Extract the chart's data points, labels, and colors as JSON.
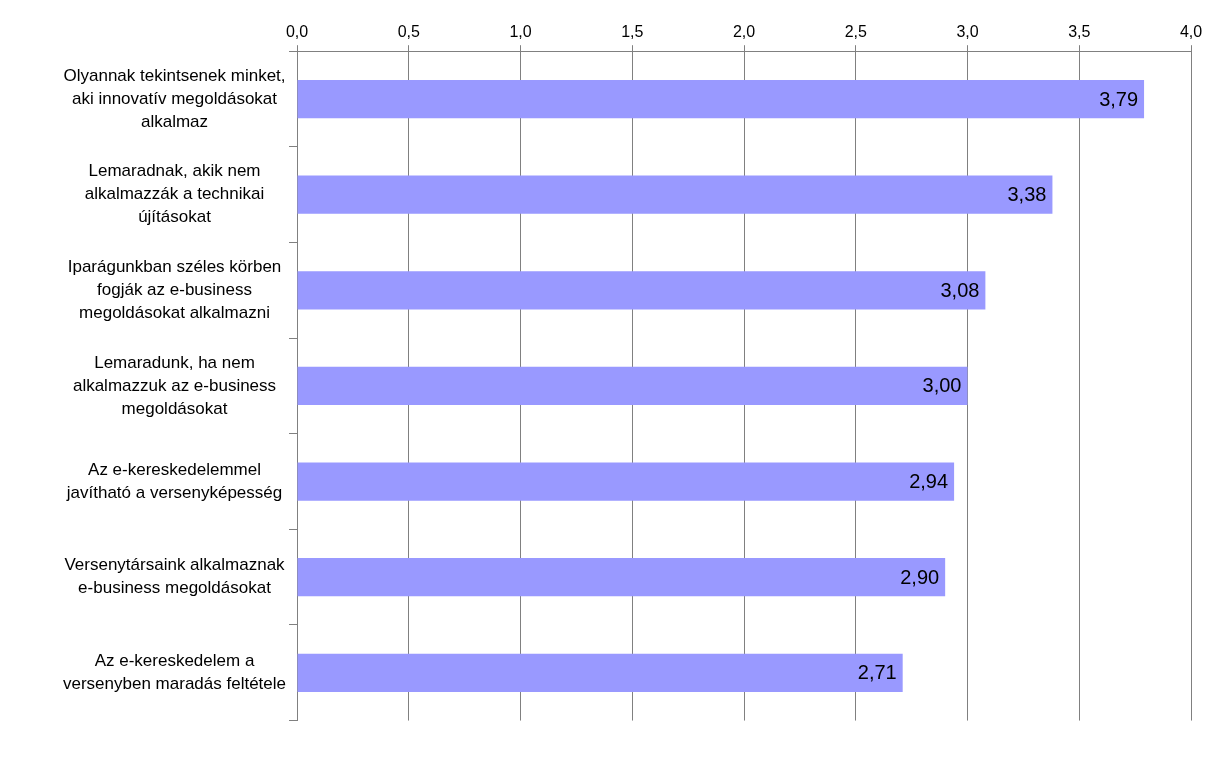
{
  "chart_data": {
    "type": "bar",
    "orientation": "horizontal",
    "categories": [
      "Olyannak tekintsenek minket, aki innovatív megoldásokat alkalmaz",
      "Lemaradnak, akik nem alkalmazzák a technikai újításokat",
      "Iparágunkban széles körben fogják az e-business megoldásokat alkalmazni",
      "Lemaradunk, ha nem alkalmazzuk az e-business megoldásokat",
      "Az e-kereskedelemmel javítható a versenyképesség",
      "Versenytársaink alkalmaznak e-business megoldásokat",
      "Az e-kereskedelem a versenyben maradás feltétele"
    ],
    "values": [
      3.79,
      3.38,
      3.08,
      3.0,
      2.94,
      2.9,
      2.71
    ],
    "value_labels": [
      "3,79",
      "3,38",
      "3,08",
      "3,00",
      "2,94",
      "2,90",
      "2,71"
    ],
    "color": "#9999ff",
    "xlim": [
      0,
      4
    ],
    "xticks": [
      {
        "value": 0,
        "label": "0,0"
      },
      {
        "value": 0.5,
        "label": "0,5"
      },
      {
        "value": 1,
        "label": "1,0"
      },
      {
        "value": 1.5,
        "label": "1,5"
      },
      {
        "value": 2,
        "label": "2,0"
      },
      {
        "value": 2.5,
        "label": "2,5"
      },
      {
        "value": 3,
        "label": "3,0"
      },
      {
        "value": 3.5,
        "label": "3,5"
      },
      {
        "value": 4,
        "label": "4,0"
      }
    ],
    "grid": "x",
    "legend": false
  }
}
